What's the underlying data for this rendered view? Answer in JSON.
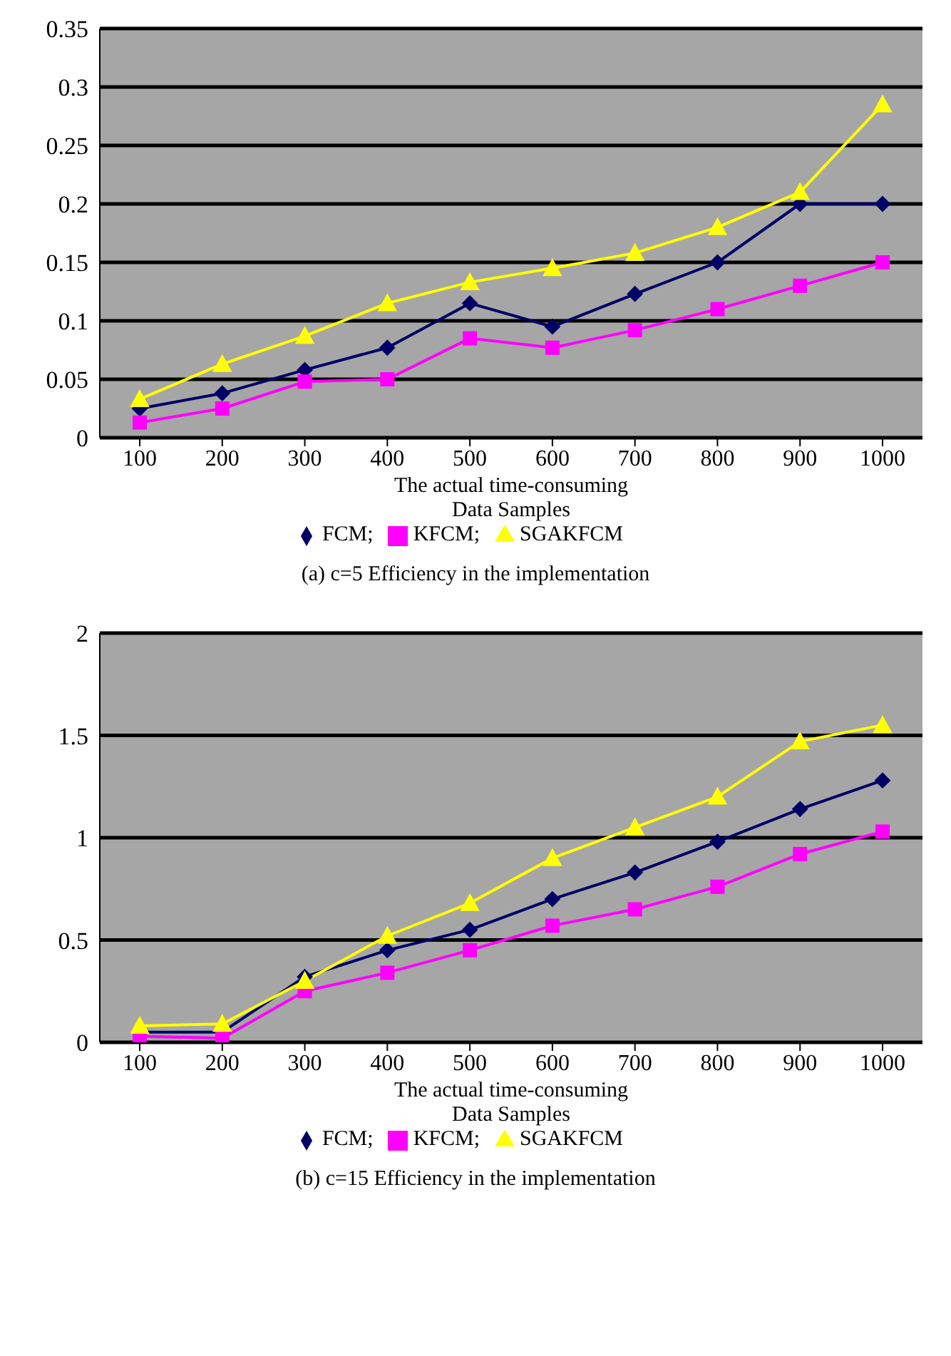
{
  "chart_data": [
    {
      "type": "line",
      "title": "(a) c=5 Efficiency in the implementation",
      "xlabel": "The actual time-consuming\nData Samples",
      "categories": [
        "100",
        "200",
        "300",
        "400",
        "500",
        "600",
        "700",
        "800",
        "900",
        "1000"
      ],
      "series": [
        {
          "name": "FCM;",
          "color": "#000066",
          "marker": "diamond",
          "values": [
            0.025,
            0.038,
            0.058,
            0.077,
            0.115,
            0.095,
            0.123,
            0.15,
            0.2,
            0.2
          ]
        },
        {
          "name": "KFCM;",
          "color": "#ff00ff",
          "marker": "square",
          "values": [
            0.013,
            0.025,
            0.048,
            0.05,
            0.085,
            0.077,
            0.092,
            0.11,
            0.13,
            0.15
          ]
        },
        {
          "name": "SGAKFCM",
          "color": "#ffff00",
          "marker": "triangle",
          "values": [
            0.033,
            0.063,
            0.087,
            0.115,
            0.133,
            0.145,
            0.158,
            0.18,
            0.21,
            0.285
          ]
        }
      ],
      "ylim": [
        0,
        0.35
      ],
      "yticks": [
        0,
        0.05,
        0.1,
        0.15,
        0.2,
        0.25,
        0.3,
        0.35
      ],
      "grid": "y",
      "legend": "bottom"
    },
    {
      "type": "line",
      "title": "(b) c=15 Efficiency in the implementation",
      "xlabel": "The actual time-consuming\nData Samples",
      "categories": [
        "100",
        "200",
        "300",
        "400",
        "500",
        "600",
        "700",
        "800",
        "900",
        "1000"
      ],
      "series": [
        {
          "name": "FCM;",
          "color": "#000066",
          "marker": "diamond",
          "values": [
            0.05,
            0.05,
            0.32,
            0.45,
            0.55,
            0.7,
            0.83,
            0.98,
            1.14,
            1.28
          ]
        },
        {
          "name": "KFCM;",
          "color": "#ff00ff",
          "marker": "square",
          "values": [
            0.03,
            0.02,
            0.25,
            0.34,
            0.45,
            0.57,
            0.65,
            0.76,
            0.92,
            1.03
          ]
        },
        {
          "name": "SGAKFCM",
          "color": "#ffff00",
          "marker": "triangle",
          "values": [
            0.08,
            0.09,
            0.3,
            0.52,
            0.68,
            0.9,
            1.05,
            1.2,
            1.47,
            1.55
          ]
        }
      ],
      "ylim": [
        0,
        2
      ],
      "yticks": [
        0,
        0.5,
        1,
        1.5,
        2
      ],
      "grid": "y",
      "legend": "bottom"
    }
  ]
}
